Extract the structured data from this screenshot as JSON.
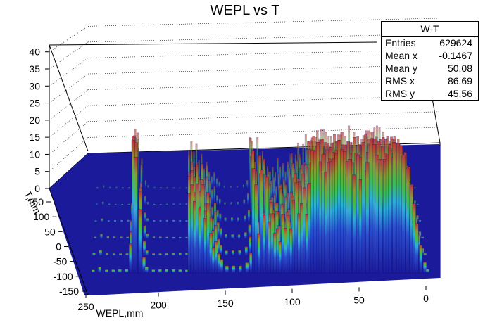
{
  "chart_data": {
    "type": "lego3d",
    "title": "WEPL vs T",
    "xlabel": "WEPL,mm",
    "ylabel": "T,mm",
    "x_ticks": [
      250,
      200,
      150,
      100,
      50,
      0
    ],
    "y_ticks": [
      150,
      100,
      50,
      0,
      -50,
      -100,
      -150
    ],
    "z_ticks": [
      0,
      5,
      10,
      15,
      20,
      25,
      30,
      35,
      40
    ],
    "xlim": [
      0,
      250
    ],
    "ylim": [
      -180,
      180
    ],
    "zlim": [
      0,
      42
    ],
    "grid": true,
    "front_profile": {
      "x": [
        250,
        245,
        240,
        235,
        230,
        225,
        222,
        220,
        218,
        215,
        212,
        210,
        205,
        200,
        195,
        190,
        185,
        180,
        178,
        176,
        174,
        172,
        170,
        168,
        166,
        164,
        162,
        160,
        158,
        156,
        154,
        150,
        145,
        140,
        135,
        132,
        130,
        128,
        126,
        124,
        122,
        120,
        118,
        116,
        114,
        112,
        110,
        108,
        106,
        104,
        102,
        100,
        98,
        96,
        94,
        92,
        90,
        88,
        86,
        84,
        82,
        80,
        78,
        76,
        74,
        72,
        70,
        68,
        66,
        64,
        62,
        60,
        58,
        55,
        52,
        50,
        48,
        45,
        42,
        40,
        38,
        35,
        32,
        30,
        28,
        25,
        22,
        20,
        18,
        15,
        12,
        10,
        8,
        5,
        2,
        0
      ],
      "values": [
        1,
        2,
        1,
        1,
        1,
        1,
        8,
        38,
        35,
        20,
        5,
        2,
        1,
        1,
        1,
        1,
        1,
        1,
        25,
        28,
        22,
        26,
        18,
        24,
        15,
        20,
        12,
        8,
        10,
        6,
        4,
        2,
        2,
        2,
        3,
        6,
        33,
        28,
        12,
        30,
        16,
        26,
        14,
        17,
        12,
        14,
        10,
        18,
        13,
        16,
        12,
        20,
        26,
        18,
        22,
        27,
        18,
        26,
        34,
        33,
        36,
        32,
        36,
        32,
        35,
        34,
        33,
        33,
        36,
        34,
        35,
        34,
        36,
        31,
        36,
        27,
        36,
        30,
        37,
        37,
        36,
        36,
        36,
        36,
        36,
        36,
        35,
        35,
        34,
        32,
        28,
        22,
        15,
        8,
        3,
        1
      ]
    },
    "stats": {
      "title": "W-T",
      "rows": [
        {
          "label": "Entries",
          "value": "629624"
        },
        {
          "label": "Mean x",
          "value": "-0.1467"
        },
        {
          "label": "Mean y",
          "value": "50.08"
        },
        {
          "label": "RMS x",
          "value": "86.69"
        },
        {
          "label": "RMS y",
          "value": "45.56"
        }
      ]
    }
  }
}
